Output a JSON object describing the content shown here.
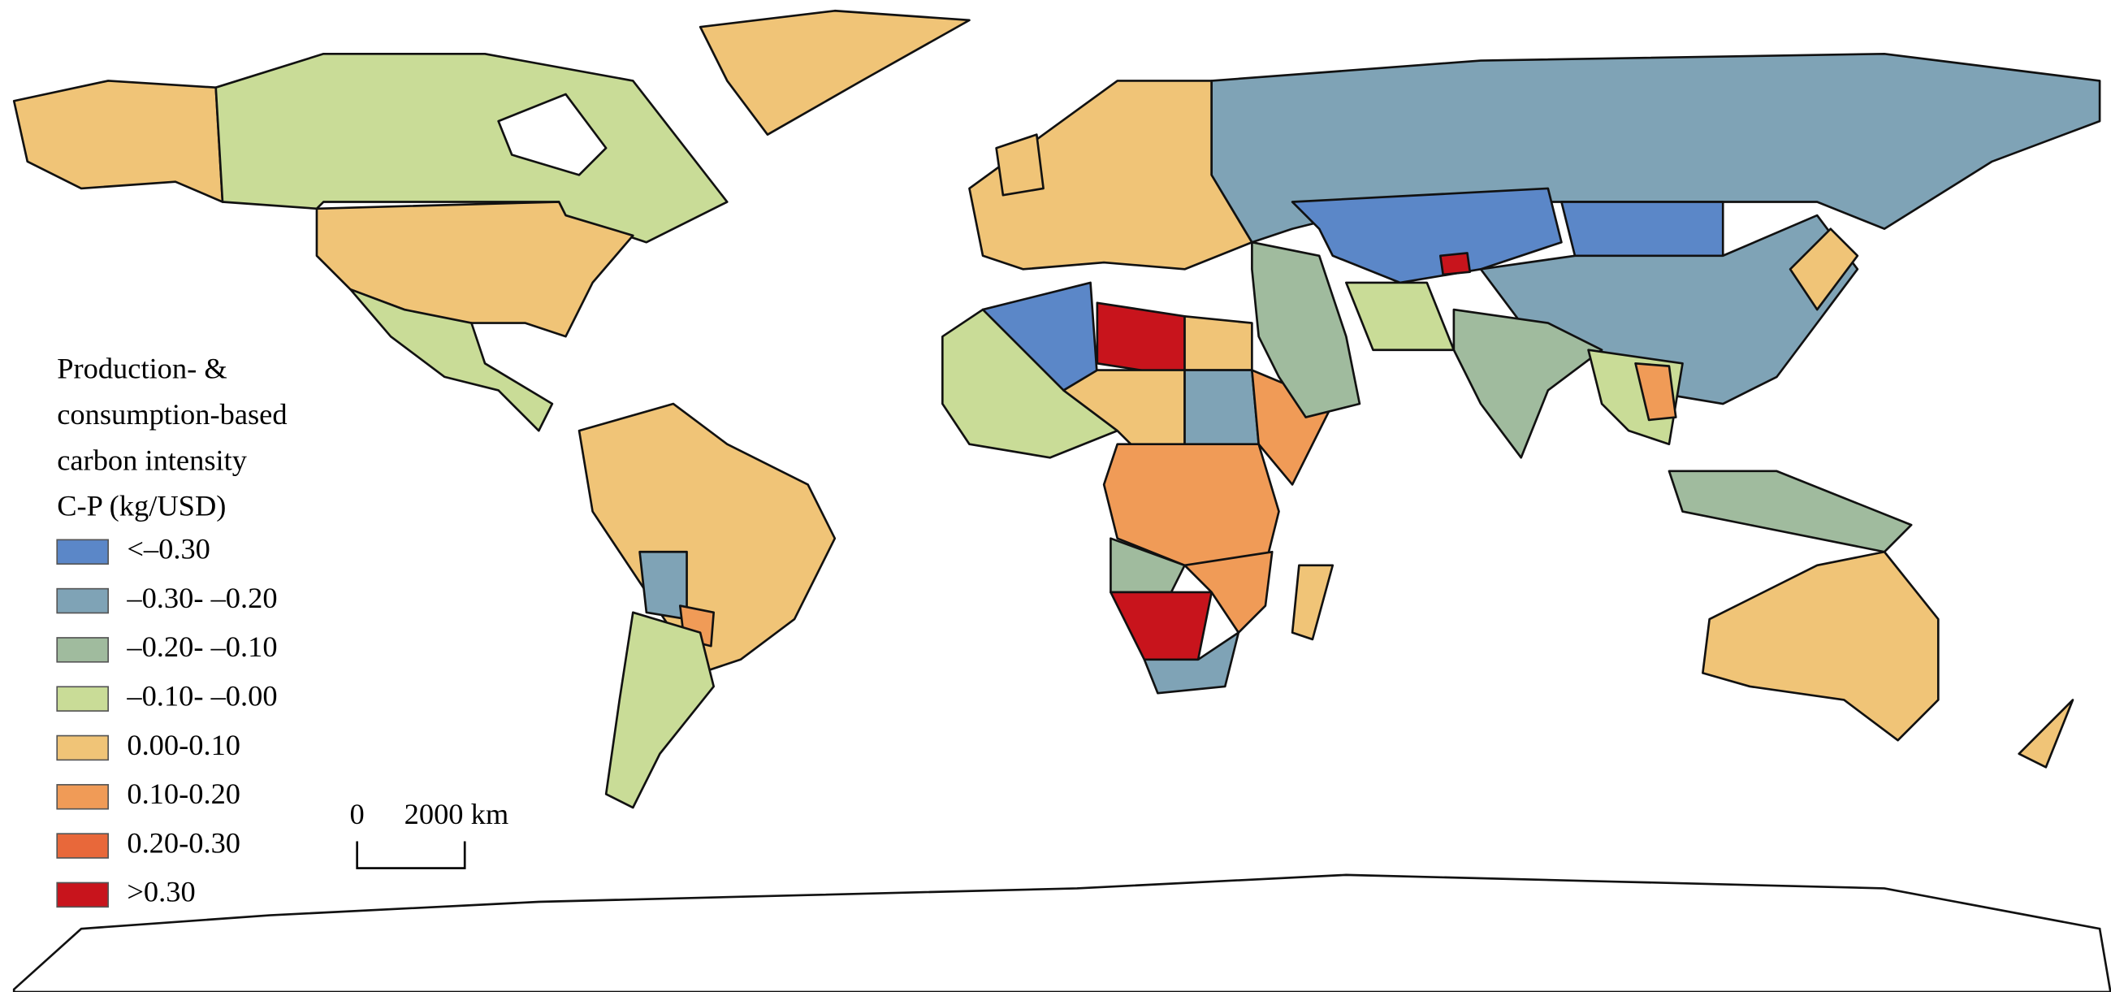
{
  "legend": {
    "title_lines": [
      "Production- &",
      "consumption-based",
      "carbon intensity",
      "C-P (kg/USD)"
    ],
    "items": [
      {
        "label": "<–0.30",
        "color": "#5b87c8"
      },
      {
        "label": "–0.30- –0.20",
        "color": "#7fa3b6"
      },
      {
        "label": "–0.20- –0.10",
        "color": "#a0bb9e"
      },
      {
        "label": "–0.10- –0.00",
        "color": "#c9dc97"
      },
      {
        "label": "0.00-0.10",
        "color": "#f0c477"
      },
      {
        "label": "0.10-0.20",
        "color": "#f09b57"
      },
      {
        "label": "0.20-0.30",
        "color": "#e8683a"
      },
      {
        "label": ">0.30",
        "color": "#c8141c"
      }
    ]
  },
  "scale_bar": {
    "start_label": "0",
    "end_label": "2000 km"
  }
}
